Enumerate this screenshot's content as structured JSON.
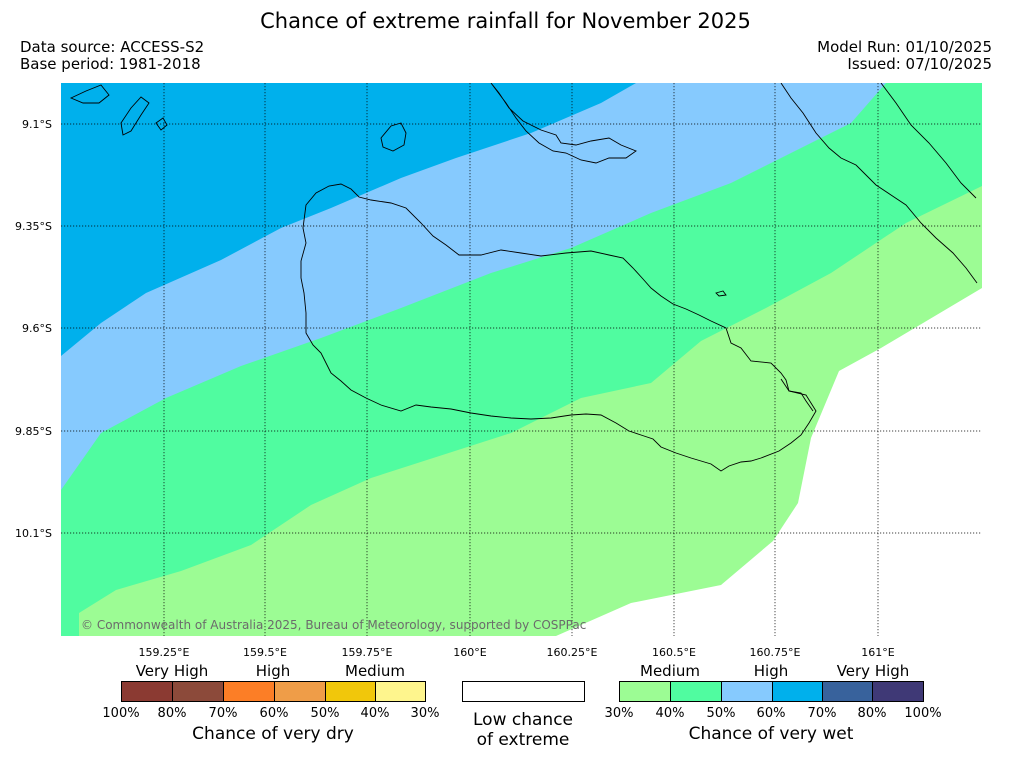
{
  "title": "Chance of extreme rainfall for November 2025",
  "meta": {
    "data_source": "Data source: ACCESS-S2",
    "base_period": "Base period: 1981-2018",
    "model_run": "Model Run: 01/10/2025",
    "issued": "Issued: 07/10/2025"
  },
  "attribution": "© Commonwealth of Australia 2025, Bureau of Meteorology, supported by COSPPac",
  "axes": {
    "lat_labels": [
      "9.1°S",
      "9.35°S",
      "9.6°S",
      "9.85°S",
      "10.1°S"
    ],
    "lon_labels": [
      "159.25°E",
      "159.5°E",
      "159.75°E",
      "160°E",
      "160.25°E",
      "160.5°E",
      "160.75°E",
      "161°E"
    ]
  },
  "map_colors": {
    "wet_60_70": "#00b0ec",
    "wet_50_60": "#86cafe",
    "wet_40_50": "#50fca0",
    "wet_30_40": "#9cfc94",
    "low_chance": "#ffffff"
  },
  "legend": {
    "dry": {
      "categories": [
        "Very High",
        "High",
        "Medium"
      ],
      "colors": [
        "#8b3a32",
        "#8c4a3a",
        "#fc7e26",
        "#ef9d48",
        "#f1c70b",
        "#fef58d"
      ],
      "ticks": [
        "100%",
        "80%",
        "70%",
        "60%",
        "50%",
        "40%",
        "30%"
      ],
      "caption": "Chance of very dry"
    },
    "neutral": {
      "color": "#ffffff",
      "caption_line1": "Low chance",
      "caption_line2": "of extreme"
    },
    "wet": {
      "categories": [
        "Medium",
        "High",
        "Very High"
      ],
      "colors": [
        "#9cfc94",
        "#50fca0",
        "#86cafe",
        "#00b0ec",
        "#38629c",
        "#3f3976"
      ],
      "ticks": [
        "30%",
        "40%",
        "50%",
        "60%",
        "70%",
        "80%",
        "100%"
      ],
      "caption": "Chance of very wet"
    }
  }
}
